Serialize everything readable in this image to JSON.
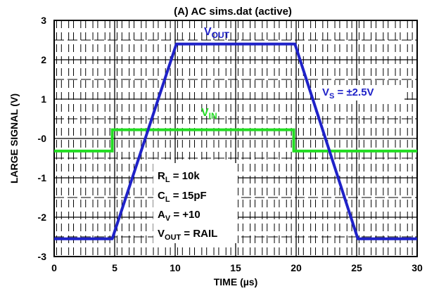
{
  "chart_data": {
    "type": "line",
    "title": "(A) AC sims.dat (active)",
    "xlabel": "TIME (µs)",
    "ylabel": "LARGE SIGNAL (V)",
    "xlim": [
      0,
      30
    ],
    "ylim": [
      -3,
      3
    ],
    "x_ticks": [
      0,
      5,
      10,
      15,
      20,
      25,
      30
    ],
    "x_tick_labels": [
      "0",
      "5",
      "10",
      "15",
      "20",
      "25",
      "30"
    ],
    "y_ticks": [
      3,
      2,
      1,
      0,
      -1,
      -2,
      -3
    ],
    "y_tick_labels": [
      "3",
      "2",
      "1",
      "-0",
      "-1",
      "-2",
      "-3"
    ],
    "grid": true,
    "series": [
      {
        "name": "V_OUT",
        "label_main": "V",
        "label_sub": "OUT",
        "color": "#1f22c8",
        "x": [
          0,
          4.8,
          10.1,
          19.9,
          25.1,
          30
        ],
        "y": [
          -2.55,
          -2.55,
          2.4,
          2.4,
          -2.55,
          -2.55
        ]
      },
      {
        "name": "V_IN",
        "label_main": "V",
        "label_sub": "IN",
        "color": "#22dd22",
        "x": [
          0,
          4.8,
          4.8,
          19.8,
          19.8,
          30
        ],
        "y": [
          -0.32,
          -0.32,
          0.22,
          0.22,
          -0.32,
          -0.32
        ]
      }
    ],
    "annotations": {
      "vs": {
        "main": "V",
        "sub": "S",
        "rest": " = ±2.5V",
        "color": "#1f22c8"
      },
      "conditions": [
        {
          "main": "R",
          "sub": "L",
          "rest": " = 10k"
        },
        {
          "main": "C",
          "sub": "L",
          "rest": " = 15pF"
        },
        {
          "main": "A",
          "sub": "V",
          "rest": " = +10"
        },
        {
          "main": "V",
          "sub": "OUT",
          "rest": " = RAIL"
        }
      ]
    }
  }
}
